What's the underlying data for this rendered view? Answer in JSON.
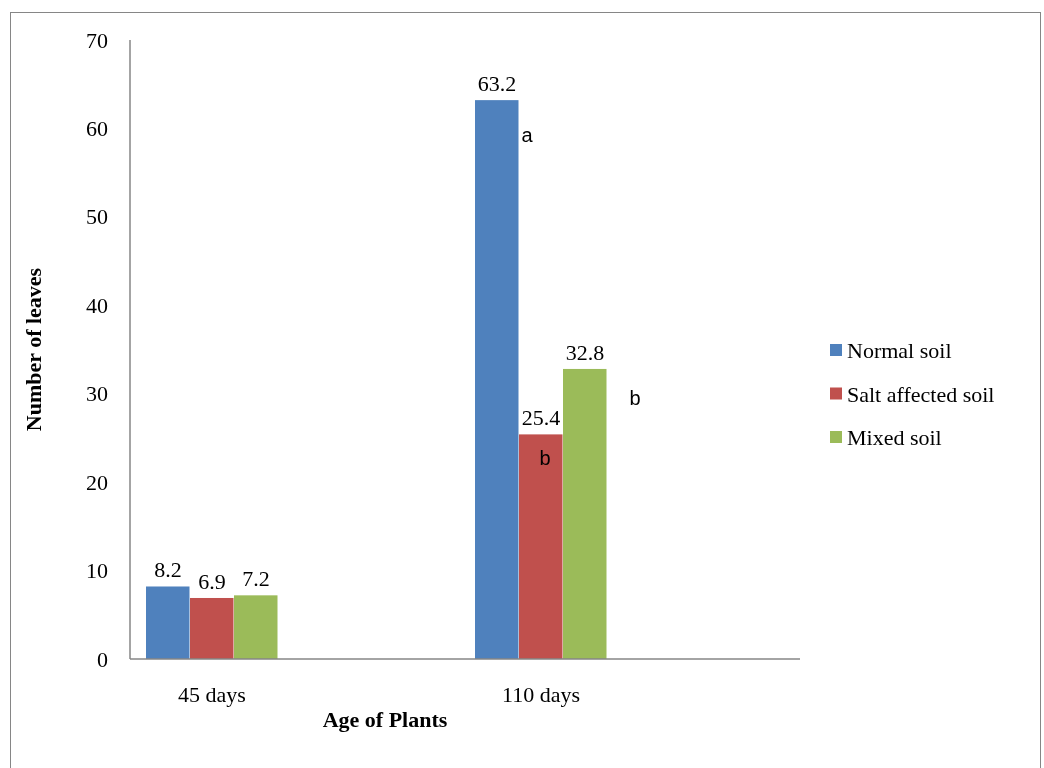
{
  "chart_data": {
    "type": "bar",
    "categories": [
      "45 days",
      "110 days"
    ],
    "series": [
      {
        "name": "Normal soil",
        "color": "#4f81bd",
        "values": [
          8.2,
          63.2
        ]
      },
      {
        "name": "Salt affected soil",
        "color": "#c0504d",
        "values": [
          6.9,
          25.4
        ]
      },
      {
        "name": "Mixed soil",
        "color": "#9bbb59",
        "values": [
          7.2,
          32.8
        ]
      }
    ],
    "xlabel": "Age of Plants",
    "ylabel": "Number of leaves",
    "ylim": [
      0,
      70
    ],
    "yticks": [
      0,
      10,
      20,
      30,
      40,
      50,
      60,
      70
    ],
    "data_labels": true,
    "legend": "right",
    "annotations": [
      "a",
      "b",
      "b"
    ]
  }
}
